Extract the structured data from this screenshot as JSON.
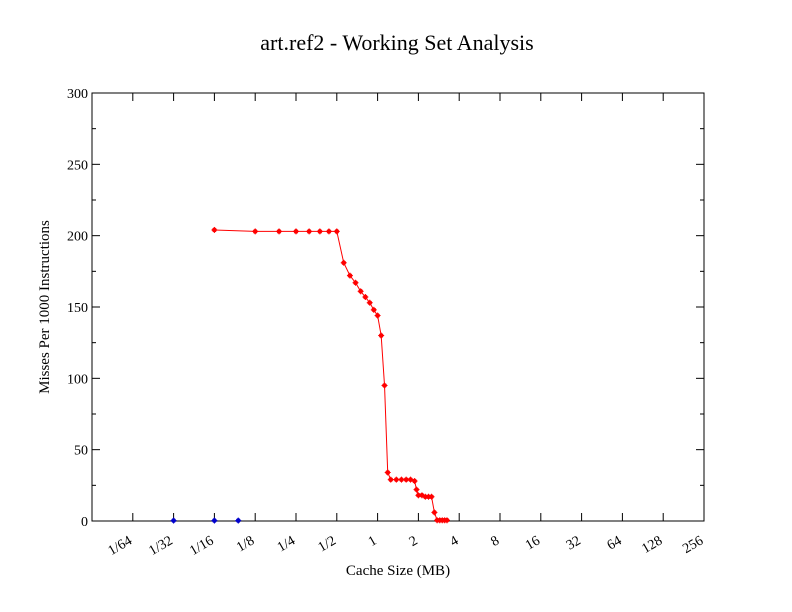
{
  "chart_data": {
    "type": "scatter",
    "title": "art.ref2 - Working Set Analysis",
    "xlabel": "Cache Size (MB)",
    "ylabel": "Misses Per 1000 Instructions",
    "x_scale": "log2",
    "xlim": [
      0.0078125,
      256
    ],
    "ylim": [
      0,
      300
    ],
    "grid": false,
    "x_tick_labels": [
      "1/64",
      "1/32",
      "1/16",
      "1/8",
      "1/4",
      "1/2",
      "1",
      "2",
      "4",
      "8",
      "16",
      "32",
      "64",
      "128",
      "256"
    ],
    "x_tick_values": [
      0.015625,
      0.03125,
      0.0625,
      0.125,
      0.25,
      0.5,
      1,
      2,
      4,
      8,
      16,
      32,
      64,
      128,
      256
    ],
    "y_tick_labels": [
      "0",
      "50",
      "100",
      "150",
      "200",
      "250",
      "300"
    ],
    "y_tick_values": [
      0,
      50,
      100,
      150,
      200,
      250,
      300
    ],
    "series": [
      {
        "color": "#ff0000",
        "line": true,
        "points": [
          {
            "x": 0.0625,
            "y": 204
          },
          {
            "x": 0.125,
            "y": 203
          },
          {
            "x": 0.1875,
            "y": 203
          },
          {
            "x": 0.25,
            "y": 203
          },
          {
            "x": 0.3125,
            "y": 203
          },
          {
            "x": 0.375,
            "y": 203
          },
          {
            "x": 0.4375,
            "y": 203
          },
          {
            "x": 0.5,
            "y": 203
          },
          {
            "x": 0.5625,
            "y": 181
          },
          {
            "x": 0.625,
            "y": 172
          },
          {
            "x": 0.6875,
            "y": 167
          },
          {
            "x": 0.75,
            "y": 161
          },
          {
            "x": 0.8125,
            "y": 157
          },
          {
            "x": 0.875,
            "y": 153
          },
          {
            "x": 0.9375,
            "y": 148
          },
          {
            "x": 1.0,
            "y": 144
          },
          {
            "x": 1.0625,
            "y": 130
          },
          {
            "x": 1.125,
            "y": 95
          },
          {
            "x": 1.1875,
            "y": 34
          },
          {
            "x": 1.25,
            "y": 29
          },
          {
            "x": 1.375,
            "y": 29
          },
          {
            "x": 1.5,
            "y": 29
          },
          {
            "x": 1.625,
            "y": 29
          },
          {
            "x": 1.75,
            "y": 29
          },
          {
            "x": 1.875,
            "y": 28
          },
          {
            "x": 1.9375,
            "y": 22
          },
          {
            "x": 2.0,
            "y": 18
          },
          {
            "x": 2.125,
            "y": 18
          },
          {
            "x": 2.25,
            "y": 17
          },
          {
            "x": 2.375,
            "y": 17
          },
          {
            "x": 2.5,
            "y": 17
          },
          {
            "x": 2.625,
            "y": 6
          },
          {
            "x": 2.75,
            "y": 0.5
          },
          {
            "x": 2.875,
            "y": 0.5
          },
          {
            "x": 3.0,
            "y": 0.5
          },
          {
            "x": 3.125,
            "y": 0.5
          },
          {
            "x": 3.25,
            "y": 0.5
          }
        ]
      },
      {
        "color": "#0000cc",
        "line": false,
        "points": [
          {
            "x": 0.03125,
            "y": 0.3
          },
          {
            "x": 0.0625,
            "y": 0.3
          },
          {
            "x": 0.09375,
            "y": 0.3
          }
        ]
      }
    ]
  }
}
